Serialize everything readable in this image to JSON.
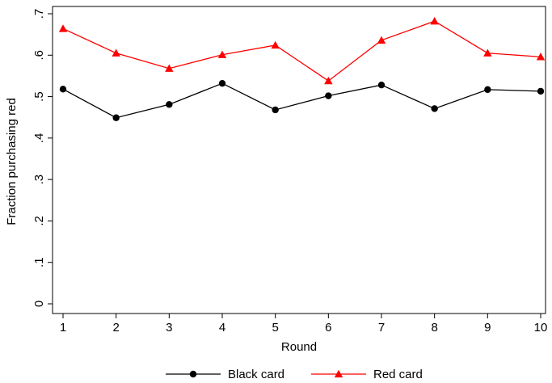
{
  "chart_data": {
    "type": "line",
    "title": "",
    "xlabel": "Round",
    "ylabel": "Fraction purchasing red",
    "x": [
      1,
      2,
      3,
      4,
      5,
      6,
      7,
      8,
      9,
      10
    ],
    "x_tick_labels": [
      "1",
      "2",
      "3",
      "4",
      "5",
      "6",
      "7",
      "8",
      "9",
      "10"
    ],
    "ylim": [
      0,
      0.7
    ],
    "y_ticks": [
      0,
      0.1,
      0.2,
      0.3,
      0.4,
      0.5,
      0.6,
      0.7
    ],
    "y_tick_labels": [
      "0",
      ".1",
      ".2",
      ".3",
      ".4",
      ".5",
      ".6",
      ".7"
    ],
    "grid": false,
    "legend_position": "bottom",
    "series": [
      {
        "name": "Black card",
        "color": "#000000",
        "marker": "circle",
        "values": [
          0.518,
          0.449,
          0.481,
          0.532,
          0.468,
          0.502,
          0.528,
          0.471,
          0.517,
          0.513
        ]
      },
      {
        "name": "Red card",
        "color": "#ff0000",
        "marker": "triangle",
        "values": [
          0.664,
          0.605,
          0.568,
          0.601,
          0.624,
          0.538,
          0.636,
          0.682,
          0.605,
          0.596
        ]
      }
    ]
  }
}
